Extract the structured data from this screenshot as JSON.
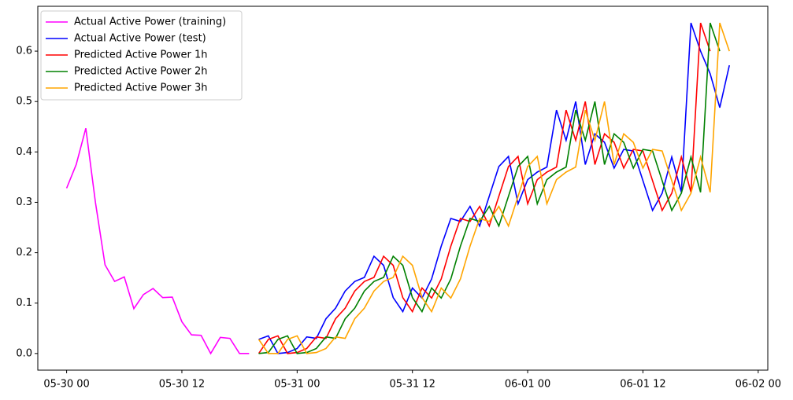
{
  "chart_data": {
    "type": "line",
    "xlim": [
      "05-29 21",
      "06-02 01"
    ],
    "xticks": [
      "05-30 00",
      "05-30 12",
      "05-31 00",
      "05-31 12",
      "06-01 00",
      "06-01 12",
      "06-02 00"
    ],
    "ylim": [
      -0.033,
      0.689
    ],
    "yticks": [
      {
        "value": 0,
        "label": "0.0"
      },
      0.1,
      0.2,
      0.3,
      0.4,
      0.5,
      0.6
    ],
    "grid": false,
    "legend": "upper left",
    "series": [
      {
        "name": "Actual Active Power (training)",
        "color": "#ff00ff",
        "x": [
          "05-30 00",
          "05-30 01",
          "05-30 02",
          "05-30 03",
          "05-30 04",
          "05-30 05",
          "05-30 06",
          "05-30 07",
          "05-30 08",
          "05-30 09",
          "05-30 10",
          "05-30 11",
          "05-30 12",
          "05-30 13",
          "05-30 14",
          "05-30 15",
          "05-30 16",
          "05-30 17",
          "05-30 18",
          "05-30 19"
        ],
        "values": [
          0.328,
          0.375,
          0.447,
          0.3,
          0.176,
          0.143,
          0.152,
          0.089,
          0.117,
          0.129,
          0.111,
          0.112,
          0.063,
          0.037,
          0.036,
          0.0,
          0.032,
          0.03,
          0.0,
          0.0
        ]
      },
      {
        "name": "Actual Active Power (test)",
        "color": "#0000ff",
        "x": [
          "05-30 20",
          "05-30 21",
          "05-30 22",
          "05-30 23",
          "05-31 00",
          "05-31 01",
          "05-31 02",
          "05-31 03",
          "05-31 04",
          "05-31 05",
          "05-31 06",
          "05-31 07",
          "05-31 08",
          "05-31 09",
          "05-31 10",
          "05-31 11",
          "05-31 12",
          "05-31 13",
          "05-31 14",
          "05-31 15",
          "05-31 16",
          "05-31 17",
          "05-31 18",
          "05-31 19",
          "05-31 20",
          "05-31 21",
          "05-31 22",
          "05-31 23",
          "06-01 00",
          "06-01 01",
          "06-01 02",
          "06-01 03",
          "06-01 04",
          "06-01 05",
          "06-01 06",
          "06-01 07",
          "06-01 08",
          "06-01 09",
          "06-01 10",
          "06-01 11",
          "06-01 12",
          "06-01 13",
          "06-01 14",
          "06-01 15",
          "06-01 16",
          "06-01 17",
          "06-01 18",
          "06-01 19",
          "06-01 20",
          "06-01 21"
        ],
        "values": [
          0.028,
          0.035,
          0.0,
          0.002,
          0.01,
          0.033,
          0.03,
          0.069,
          0.09,
          0.124,
          0.143,
          0.151,
          0.193,
          0.175,
          0.111,
          0.083,
          0.13,
          0.11,
          0.148,
          0.213,
          0.268,
          0.262,
          0.292,
          0.253,
          0.312,
          0.371,
          0.391,
          0.297,
          0.345,
          0.36,
          0.37,
          0.483,
          0.423,
          0.5,
          0.375,
          0.436,
          0.419,
          0.368,
          0.405,
          0.402,
          0.343,
          0.284,
          0.318,
          0.39,
          0.32,
          0.656,
          0.6,
          0.555,
          0.488,
          0.572
        ]
      },
      {
        "name": "Predicted Active Power 1h",
        "color": "#ff0000",
        "x": [
          "05-30 20",
          "05-30 21",
          "05-30 22",
          "05-30 23",
          "05-31 00",
          "05-31 01",
          "05-31 02",
          "05-31 03",
          "05-31 04",
          "05-31 05",
          "05-31 06",
          "05-31 07",
          "05-31 08",
          "05-31 09",
          "05-31 10",
          "05-31 11",
          "05-31 12",
          "05-31 13",
          "05-31 14",
          "05-31 15",
          "05-31 16",
          "05-31 17",
          "05-31 18",
          "05-31 19",
          "05-31 20",
          "05-31 21",
          "05-31 22",
          "05-31 23",
          "06-01 00",
          "06-01 01",
          "06-01 02",
          "06-01 03",
          "06-01 04",
          "06-01 05",
          "06-01 06",
          "06-01 07",
          "06-01 08",
          "06-01 09",
          "06-01 10",
          "06-01 11",
          "06-01 12",
          "06-01 13",
          "06-01 14",
          "06-01 15",
          "06-01 16",
          "06-01 17",
          "06-01 18",
          "06-01 19"
        ],
        "values": [
          0.0,
          0.028,
          0.035,
          0.0,
          0.002,
          0.01,
          0.033,
          0.03,
          0.069,
          0.09,
          0.124,
          0.143,
          0.151,
          0.193,
          0.175,
          0.111,
          0.083,
          0.13,
          0.11,
          0.148,
          0.213,
          0.268,
          0.262,
          0.292,
          0.253,
          0.312,
          0.371,
          0.391,
          0.297,
          0.345,
          0.36,
          0.37,
          0.483,
          0.423,
          0.5,
          0.375,
          0.436,
          0.419,
          0.368,
          0.405,
          0.402,
          0.343,
          0.284,
          0.318,
          0.39,
          0.32,
          0.656,
          0.6
        ]
      },
      {
        "name": "Predicted Active Power 2h",
        "color": "#008000",
        "x": [
          "05-30 20",
          "05-30 21",
          "05-30 22",
          "05-30 23",
          "05-31 00",
          "05-31 01",
          "05-31 02",
          "05-31 03",
          "05-31 04",
          "05-31 05",
          "05-31 06",
          "05-31 07",
          "05-31 08",
          "05-31 09",
          "05-31 10",
          "05-31 11",
          "05-31 12",
          "05-31 13",
          "05-31 14",
          "05-31 15",
          "05-31 16",
          "05-31 17",
          "05-31 18",
          "05-31 19",
          "05-31 20",
          "05-31 21",
          "05-31 22",
          "05-31 23",
          "06-01 00",
          "06-01 01",
          "06-01 02",
          "06-01 03",
          "06-01 04",
          "06-01 05",
          "06-01 06",
          "06-01 07",
          "06-01 08",
          "06-01 09",
          "06-01 10",
          "06-01 11",
          "06-01 12",
          "06-01 13",
          "06-01 14",
          "06-01 15",
          "06-01 16",
          "06-01 17",
          "06-01 18",
          "06-01 19",
          "06-01 20"
        ],
        "values": [
          0.0,
          0.002,
          0.028,
          0.035,
          0.0,
          0.002,
          0.01,
          0.033,
          0.03,
          0.069,
          0.09,
          0.124,
          0.143,
          0.151,
          0.193,
          0.175,
          0.111,
          0.083,
          0.13,
          0.11,
          0.148,
          0.213,
          0.268,
          0.262,
          0.292,
          0.253,
          0.312,
          0.371,
          0.391,
          0.297,
          0.345,
          0.36,
          0.37,
          0.483,
          0.423,
          0.5,
          0.375,
          0.436,
          0.419,
          0.368,
          0.405,
          0.402,
          0.343,
          0.284,
          0.318,
          0.39,
          0.32,
          0.656,
          0.6
        ]
      },
      {
        "name": "Predicted Active Power 3h",
        "color": "#ffa500",
        "x": [
          "05-30 20",
          "05-30 21",
          "05-30 22",
          "05-30 23",
          "05-31 00",
          "05-31 01",
          "05-31 02",
          "05-31 03",
          "05-31 04",
          "05-31 05",
          "05-31 06",
          "05-31 07",
          "05-31 08",
          "05-31 09",
          "05-31 10",
          "05-31 11",
          "05-31 12",
          "05-31 13",
          "05-31 14",
          "05-31 15",
          "05-31 16",
          "05-31 17",
          "05-31 18",
          "05-31 19",
          "05-31 20",
          "05-31 21",
          "05-31 22",
          "05-31 23",
          "06-01 00",
          "06-01 01",
          "06-01 02",
          "06-01 03",
          "06-01 04",
          "06-01 05",
          "06-01 06",
          "06-01 07",
          "06-01 08",
          "06-01 09",
          "06-01 10",
          "06-01 11",
          "06-01 12",
          "06-01 13",
          "06-01 14",
          "06-01 15",
          "06-01 16",
          "06-01 17",
          "06-01 18",
          "06-01 19",
          "06-01 20",
          "06-01 21"
        ],
        "values": [
          0.028,
          0.0,
          0.0,
          0.028,
          0.035,
          0.0,
          0.002,
          0.01,
          0.033,
          0.03,
          0.069,
          0.09,
          0.124,
          0.143,
          0.151,
          0.193,
          0.175,
          0.111,
          0.083,
          0.13,
          0.11,
          0.148,
          0.213,
          0.268,
          0.262,
          0.292,
          0.253,
          0.312,
          0.371,
          0.391,
          0.297,
          0.345,
          0.36,
          0.37,
          0.483,
          0.423,
          0.5,
          0.375,
          0.436,
          0.419,
          0.368,
          0.405,
          0.402,
          0.343,
          0.284,
          0.318,
          0.39,
          0.32,
          0.656,
          0.6
        ]
      }
    ]
  }
}
